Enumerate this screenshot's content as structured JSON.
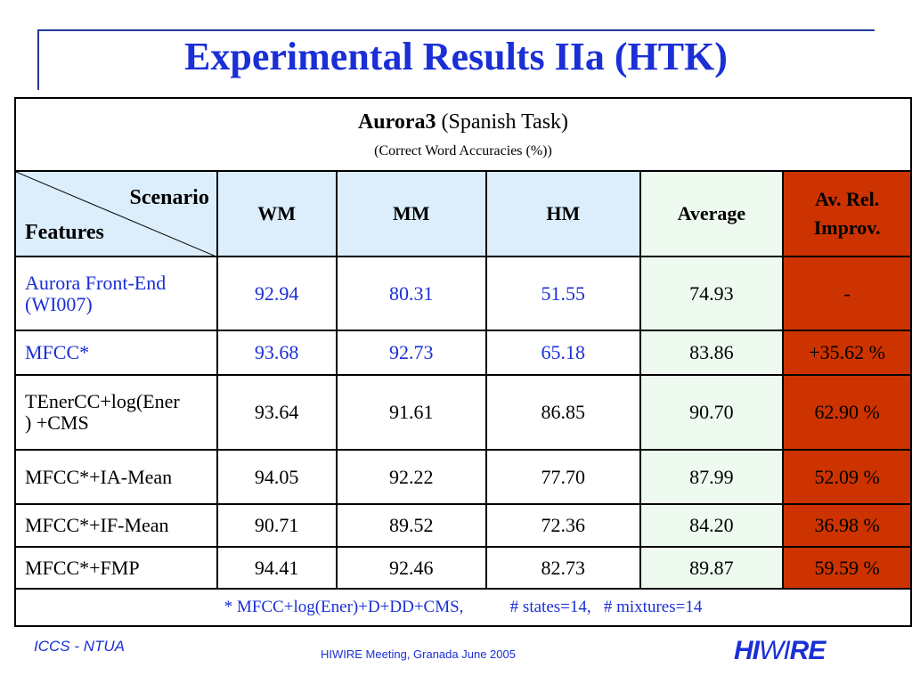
{
  "title": "Experimental Results IIa (HTK)",
  "caption": {
    "bold": "Aurora3",
    "rest": " (Spanish Task)",
    "sub": "(Correct Word Accuracies (%))"
  },
  "header": {
    "scenario": "Scenario",
    "features": "Features",
    "wm": "WM",
    "mm": "MM",
    "hm": "HM",
    "average": "Average",
    "relimp_line1": "Av. Rel.",
    "relimp_line2": "Improv."
  },
  "rows": [
    {
      "feature_l1": "Aurora Front-End",
      "feature_l2": "(WI007)",
      "wm": "92.94",
      "mm": "80.31",
      "hm": "51.55",
      "avg": "74.93",
      "rel": "-"
    },
    {
      "feature_l1": "MFCC*",
      "feature_l2": "",
      "wm": "93.68",
      "mm": "92.73",
      "hm": "65.18",
      "avg": "83.86",
      "rel": "+35.62 %"
    },
    {
      "feature_l1": "TEnerCC+log(Ener",
      "feature_l2": ") +CMS",
      "wm": "93.64",
      "mm": "91.61",
      "hm": "86.85",
      "avg": "90.70",
      "rel": "62.90 %"
    },
    {
      "feature_l1": "MFCC*+IA-Mean",
      "feature_l2": "",
      "wm": "94.05",
      "mm": "92.22",
      "hm": "77.70",
      "avg": "87.99",
      "rel": "52.09 %"
    },
    {
      "feature_l1": "MFCC*+IF-Mean",
      "feature_l2": "",
      "wm": "90.71",
      "mm": "89.52",
      "hm": "72.36",
      "avg": "84.20",
      "rel": "36.98 %"
    },
    {
      "feature_l1": "MFCC*+FMP",
      "feature_l2": "",
      "wm": "94.41",
      "mm": "92.46",
      "hm": "82.73",
      "avg": "89.87",
      "rel": "59.59 %"
    }
  ],
  "footnote": "* MFCC+log(Ener)+D+DD+CMS,           # states=14,   # mixtures=14",
  "footer": {
    "left": "ICCS - NTUA",
    "center": "HIWIRE Meeting, Granada June 2005",
    "logo_p1": "HI",
    "logo_p2": "WI",
    "logo_p3": "RE"
  },
  "colors": {
    "title_blue": "#1a2fd6",
    "header_bg": "#dceefc",
    "average_bg": "#eefaf0",
    "relimp_bg": "#cc3300"
  }
}
